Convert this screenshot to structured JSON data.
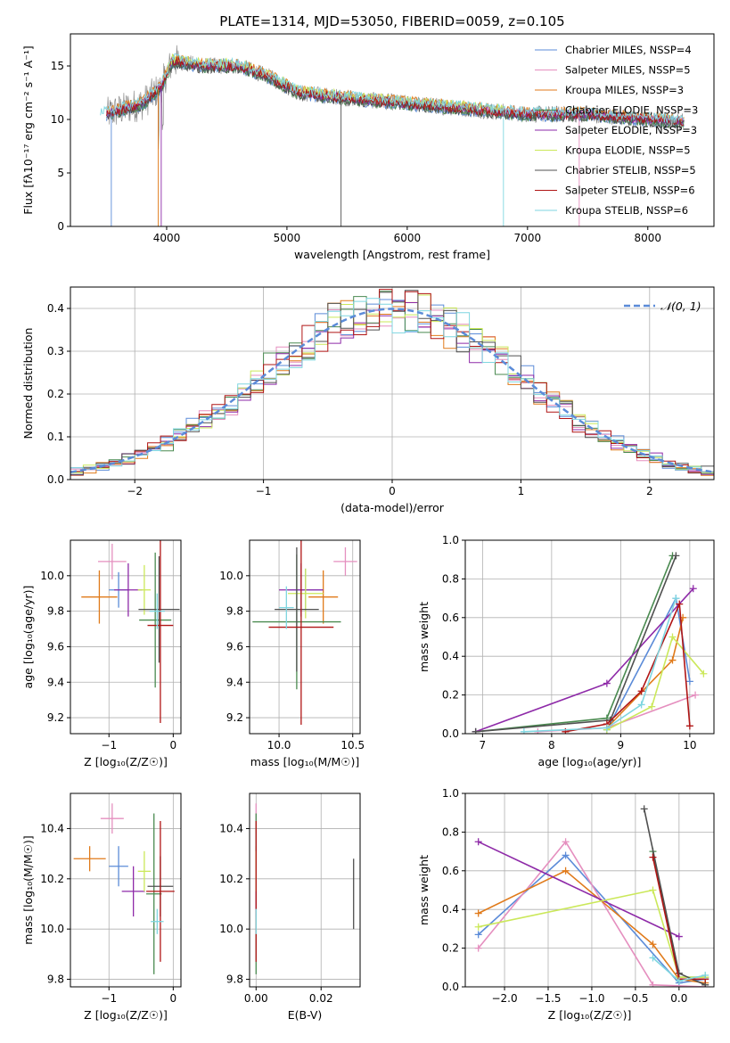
{
  "title": "PLATE=1314, MJD=53050, FIBERID=0059, z=0.105",
  "colors": {
    "chabrier_miles": "#5b8bd8",
    "salpeter_miles": "#e58fbf",
    "kroupa_miles": "#e07a1a",
    "chabrier_elodie": "#4a8a50",
    "salpeter_elodie": "#8e2aa8",
    "kroupa_elodie": "#cbe85a",
    "chabrier_stelib": "#505050",
    "salpeter_stelib": "#b01515",
    "kroupa_stelib": "#7fd6e0",
    "normal": "#5b8bd8"
  },
  "chart_data": [
    {
      "id": "spectrum",
      "type": "line",
      "xlabel": "wavelength [Angstrom, rest frame]",
      "ylabel": "Flux [fλ10⁻¹⁷ erg cm⁻² s⁻¹ A⁻¹]",
      "xlim": [
        3200,
        8550
      ],
      "ylim": [
        0,
        18
      ],
      "xticks": [
        4000,
        5000,
        6000,
        7000,
        8000
      ],
      "yticks": [
        0,
        5,
        10,
        15
      ],
      "legend_position": "right",
      "legend": [
        "Chabrier MILES, NSSP=4",
        "Salpeter MILES, NSSP=5",
        "Kroupa MILES, NSSP=3",
        "Chabrier ELODIE, NSSP=3",
        "Salpeter ELODIE, NSSP=3",
        "Kroupa ELODIE, NSSP=5",
        "Chabrier STELIB, NSSP=5",
        "Salpeter STELIB, NSSP=6",
        "Kroupa STELIB, NSSP=6"
      ],
      "continuum_anchor": {
        "wavelength": [
          3500,
          3800,
          3950,
          4050,
          4300,
          4600,
          4850,
          5100,
          5500,
          6000,
          6500,
          7000,
          7500,
          8000,
          8300
        ],
        "flux": [
          10.5,
          11.5,
          13.0,
          15.5,
          15.0,
          15.0,
          14.0,
          12.5,
          12.0,
          11.5,
          11.0,
          10.5,
          10.5,
          10.0,
          9.8
        ]
      }
    },
    {
      "id": "residuals",
      "type": "histogram",
      "xlabel": "(data-model)/error",
      "ylabel": "Normed distribution",
      "xlim": [
        -2.5,
        2.5
      ],
      "ylim": [
        0,
        0.45
      ],
      "xticks": [
        -2,
        -1,
        0,
        1,
        2
      ],
      "yticks": [
        0.0,
        0.1,
        0.2,
        0.3,
        0.4
      ],
      "legend": [
        "𝒩(0, 1)"
      ],
      "legend_position": "top-right",
      "bin_width": 0.1
    },
    {
      "id": "age_vs_Z",
      "type": "errorbar",
      "xlabel": "Z [log₁₀(Z/Z☉)]",
      "ylabel": "age  [log₁₀(age/yr)]",
      "xlim": [
        -1.6,
        0.12
      ],
      "ylim": [
        9.11,
        10.2
      ],
      "xticks": [
        -1,
        0
      ],
      "yticks": [
        9.2,
        9.4,
        9.6,
        9.8,
        10.0
      ],
      "points": [
        {
          "x": -0.85,
          "y": 9.92,
          "xerr": 0.15,
          "yerr": 0.1
        },
        {
          "x": -0.95,
          "y": 10.08,
          "xerr": 0.22,
          "yerr": 0.1
        },
        {
          "x": -1.15,
          "y": 9.88,
          "xerr": 0.28,
          "yerr": 0.15
        },
        {
          "x": -0.28,
          "y": 9.75,
          "xerr": 0.25,
          "yerr": 0.38
        },
        {
          "x": -0.7,
          "y": 9.92,
          "xerr": 0.22,
          "yerr": 0.15
        },
        {
          "x": -0.45,
          "y": 9.92,
          "xerr": 0.1,
          "yerr": 0.14
        },
        {
          "x": -0.22,
          "y": 9.81,
          "xerr": 0.32,
          "yerr": 0.3
        },
        {
          "x": -0.2,
          "y": 9.72,
          "xerr": 0.2,
          "yerr": 0.55
        },
        {
          "x": -0.25,
          "y": 9.8,
          "xerr": 0.12,
          "yerr": 0.1
        }
      ]
    },
    {
      "id": "age_vs_mass",
      "type": "errorbar",
      "xlabel": "mass [log₁₀(M/M☉)]",
      "ylabel": "",
      "xlim": [
        9.8,
        10.55
      ],
      "ylim": [
        9.11,
        10.2
      ],
      "xticks": [
        10.0,
        10.5
      ],
      "yticks": [
        9.2,
        9.4,
        9.6,
        9.8,
        10.0
      ],
      "points": [
        {
          "x": 10.18,
          "y": 9.92,
          "xerr": 0.12,
          "yerr": 0.12
        },
        {
          "x": 10.45,
          "y": 10.08,
          "xerr": 0.08,
          "yerr": 0.08
        },
        {
          "x": 10.3,
          "y": 9.88,
          "xerr": 0.1,
          "yerr": 0.15
        },
        {
          "x": 10.12,
          "y": 9.74,
          "xerr": 0.3,
          "yerr": 0.38
        },
        {
          "x": 10.15,
          "y": 9.92,
          "xerr": 0.15,
          "yerr": 0.15
        },
        {
          "x": 10.18,
          "y": 9.9,
          "xerr": 0.12,
          "yerr": 0.14
        },
        {
          "x": 10.12,
          "y": 9.81,
          "xerr": 0.15,
          "yerr": 0.35
        },
        {
          "x": 10.15,
          "y": 9.71,
          "xerr": 0.22,
          "yerr": 0.55
        },
        {
          "x": 10.05,
          "y": 9.82,
          "xerr": 0.05,
          "yerr": 0.12
        }
      ]
    },
    {
      "id": "weights_vs_age",
      "type": "line",
      "xlabel": "age  [log₁₀(age/yr)]",
      "ylabel": "mass weight",
      "xlim": [
        6.75,
        10.35
      ],
      "ylim": [
        0,
        1.0
      ],
      "xticks": [
        7,
        8,
        9,
        10
      ],
      "yticks": [
        0.0,
        0.2,
        0.4,
        0.6,
        0.8,
        1.0
      ],
      "series": [
        {
          "x": [
            8.8,
            9.8,
            10.0
          ],
          "y": [
            0.02,
            0.7,
            0.27
          ]
        },
        {
          "x": [
            7.8,
            8.8,
            10.08
          ],
          "y": [
            0.01,
            0.03,
            0.2
          ]
        },
        {
          "x": [
            8.8,
            9.75,
            9.9
          ],
          "y": [
            0.03,
            0.38,
            0.6
          ]
        },
        {
          "x": [
            6.9,
            8.8,
            9.75
          ],
          "y": [
            0.01,
            0.08,
            0.92
          ]
        },
        {
          "x": [
            6.9,
            8.8,
            10.05
          ],
          "y": [
            0.01,
            0.26,
            0.75
          ]
        },
        {
          "x": [
            8.8,
            9.45,
            9.75,
            10.2
          ],
          "y": [
            0.02,
            0.14,
            0.5,
            0.31
          ]
        },
        {
          "x": [
            6.9,
            8.85,
            9.8
          ],
          "y": [
            0.01,
            0.07,
            0.92
          ]
        },
        {
          "x": [
            8.2,
            8.8,
            9.3,
            9.85,
            10.0
          ],
          "y": [
            0.01,
            0.05,
            0.22,
            0.67,
            0.04
          ]
        },
        {
          "x": [
            7.6,
            8.8,
            9.3,
            9.8
          ],
          "y": [
            0.01,
            0.03,
            0.15,
            0.7
          ]
        }
      ]
    },
    {
      "id": "mass_vs_Z",
      "type": "errorbar",
      "xlabel": "Z [log₁₀(Z/Z☉)]",
      "ylabel": "mass [log₁₀(M/M☉)]",
      "xlim": [
        -1.6,
        0.12
      ],
      "ylim": [
        9.77,
        10.54
      ],
      "xticks": [
        -1,
        0
      ],
      "yticks": [
        9.8,
        10.0,
        10.2,
        10.4
      ],
      "points": [
        {
          "x": -0.85,
          "y": 10.25,
          "xerr": 0.15,
          "yerr": 0.08
        },
        {
          "x": -0.95,
          "y": 10.44,
          "xerr": 0.18,
          "yerr": 0.06
        },
        {
          "x": -1.3,
          "y": 10.28,
          "xerr": 0.25,
          "yerr": 0.05
        },
        {
          "x": -0.3,
          "y": 10.14,
          "xerr": 0.12,
          "yerr": 0.32
        },
        {
          "x": -0.62,
          "y": 10.15,
          "xerr": 0.18,
          "yerr": 0.1
        },
        {
          "x": -0.45,
          "y": 10.23,
          "xerr": 0.1,
          "yerr": 0.08
        },
        {
          "x": -0.2,
          "y": 10.17,
          "xerr": 0.2,
          "yerr": 0.12
        },
        {
          "x": -0.2,
          "y": 10.15,
          "xerr": 0.22,
          "yerr": 0.28
        },
        {
          "x": -0.25,
          "y": 10.03,
          "xerr": 0.1,
          "yerr": 0.05
        }
      ]
    },
    {
      "id": "mass_vs_ebv",
      "type": "errorbar",
      "xlabel": "E(B-V)",
      "ylabel": "",
      "xlim": [
        -0.002,
        0.032
      ],
      "ylim": [
        9.77,
        10.54
      ],
      "xticks": [
        0.0,
        0.02
      ],
      "yticks": [
        9.8,
        10.0,
        10.2,
        10.4
      ],
      "points": [
        {
          "x": 0.0,
          "y": 10.25,
          "xerr": 0,
          "yerr": 0.08
        },
        {
          "x": 0.0,
          "y": 10.44,
          "xerr": 0,
          "yerr": 0.06
        },
        {
          "x": 0.0,
          "y": 10.28,
          "xerr": 0,
          "yerr": 0.05
        },
        {
          "x": 0.0,
          "y": 10.14,
          "xerr": 0,
          "yerr": 0.32
        },
        {
          "x": 0.0,
          "y": 10.15,
          "xerr": 0,
          "yerr": 0.1
        },
        {
          "x": 0.0,
          "y": 10.23,
          "xerr": 0,
          "yerr": 0.08
        },
        {
          "x": 0.03,
          "y": 10.14,
          "xerr": 0,
          "yerr": 0.14
        },
        {
          "x": 0.0,
          "y": 10.15,
          "xerr": 0,
          "yerr": 0.28
        },
        {
          "x": 0.0,
          "y": 10.03,
          "xerr": 0,
          "yerr": 0.05
        }
      ]
    },
    {
      "id": "weights_vs_Z",
      "type": "line",
      "xlabel": "Z [log₁₀(Z/Z☉)]",
      "ylabel": "mass weight",
      "xlim": [
        -2.45,
        0.4
      ],
      "ylim": [
        0,
        1.0
      ],
      "xticks": [
        -2.0,
        -1.5,
        -1.0,
        -0.5,
        0.0
      ],
      "yticks": [
        0.0,
        0.2,
        0.4,
        0.6,
        0.8,
        1.0
      ],
      "series": [
        {
          "x": [
            -2.3,
            -1.3,
            0.0,
            0.3
          ],
          "y": [
            0.27,
            0.68,
            0.02,
            0.04
          ]
        },
        {
          "x": [
            -2.3,
            -1.3,
            -0.3,
            0.3
          ],
          "y": [
            0.2,
            0.75,
            0.01,
            0.0
          ]
        },
        {
          "x": [
            -2.3,
            -1.3,
            -0.3,
            0.0,
            0.3
          ],
          "y": [
            0.38,
            0.6,
            0.22,
            0.04,
            0.02
          ]
        },
        {
          "x": [
            -0.3,
            0.0,
            0.3
          ],
          "y": [
            0.7,
            0.05,
            0.05
          ]
        },
        {
          "x": [
            -2.3,
            0.0
          ],
          "y": [
            0.75,
            0.26
          ]
        },
        {
          "x": [
            -2.3,
            -0.3,
            0.0,
            0.3
          ],
          "y": [
            0.31,
            0.5,
            0.05,
            0.05
          ]
        },
        {
          "x": [
            -0.4,
            0.0,
            0.3
          ],
          "y": [
            0.92,
            0.07,
            0.01
          ]
        },
        {
          "x": [
            -0.3,
            0.0,
            0.3
          ],
          "y": [
            0.67,
            0.04,
            0.04
          ]
        },
        {
          "x": [
            -0.3,
            0.0,
            0.3
          ],
          "y": [
            0.15,
            0.03,
            0.06
          ]
        }
      ]
    }
  ]
}
